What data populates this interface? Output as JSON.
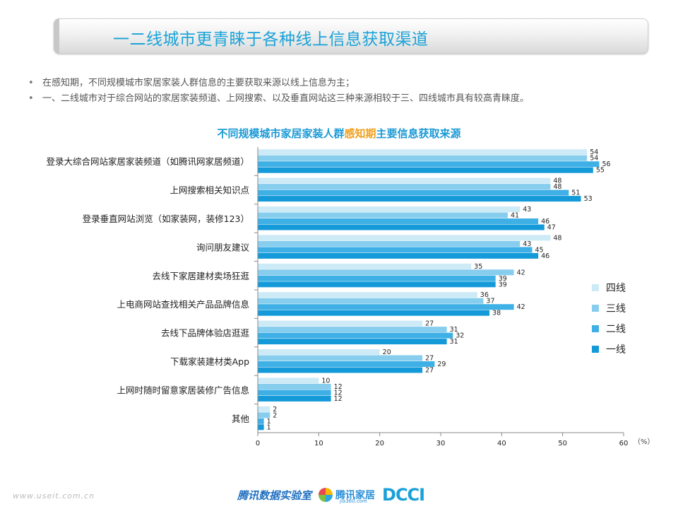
{
  "header": {
    "title": "一二线城市更青睐于各种线上信息获取渠道"
  },
  "bullets": [
    "在感知期，不同规模城市家居家装人群信息的主要获取来源以线上信息为主；",
    "一、二线城市对于综合网站的家居家装频道、上网搜索、以及垂直网站这三种来源相较于三、四线城市具有较高青睐度。"
  ],
  "chart_title": {
    "before": "不同规模城市家居家装人群",
    "highlight": "感知期",
    "after": "主要信息获取来源"
  },
  "chart_data": {
    "type": "bar",
    "orientation": "horizontal",
    "categories": [
      "登录大综合网站家居家装频道（如腾讯网家居频道）",
      "上网搜索相关知识点",
      "登录垂直网站浏览（如家装网，装修123）",
      "询问朋友建议",
      "去线下家居建材卖场狂逛",
      "上电商网站查找相关产品品牌信息",
      "去线下品牌体验店逛逛",
      "下载家装建材类App",
      "上网时随时留意家居装修广告信息",
      "其他"
    ],
    "series": [
      {
        "name": "四线",
        "color": "#cdeaf7",
        "values": [
          54,
          48,
          43,
          48,
          35,
          36,
          27,
          20,
          10,
          2
        ]
      },
      {
        "name": "三线",
        "color": "#86cdee",
        "values": [
          54,
          48,
          41,
          43,
          42,
          37,
          31,
          27,
          12,
          2
        ]
      },
      {
        "name": "二线",
        "color": "#3fb0e5",
        "values": [
          56,
          51,
          46,
          45,
          39,
          42,
          32,
          29,
          12,
          1
        ]
      },
      {
        "name": "一线",
        "color": "#159ad9",
        "values": [
          55,
          53,
          47,
          46,
          39,
          38,
          31,
          27,
          12,
          1
        ]
      }
    ],
    "x_ticks": [
      0,
      10,
      20,
      30,
      40,
      50,
      60
    ],
    "x_unit": "（%）",
    "xlim": [
      0,
      60
    ],
    "legend_position": "right"
  },
  "footer": {
    "url": "www.useit.com.cn",
    "logo1": "腾讯数据实验室",
    "logo2": "腾讯家居",
    "logo2_sub": "jia360.com",
    "logo3": "DCCI"
  }
}
